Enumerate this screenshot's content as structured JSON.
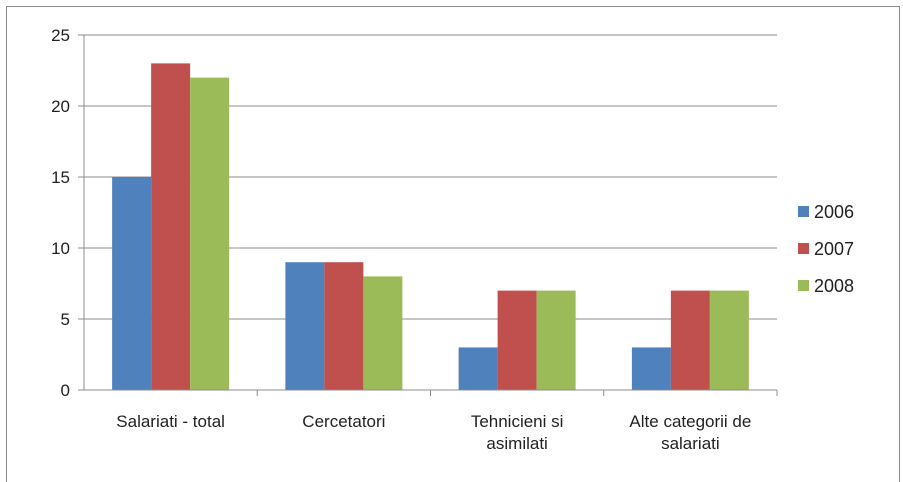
{
  "chart_data": {
    "type": "bar",
    "categories": [
      [
        "Salariati - total"
      ],
      [
        "Cercetatori"
      ],
      [
        "Tehnicieni si",
        "asimilati"
      ],
      [
        "Alte categorii de",
        "salariati"
      ]
    ],
    "series": [
      {
        "name": "2006",
        "color": "#4f81bd",
        "values": [
          15,
          9,
          3,
          3
        ]
      },
      {
        "name": "2007",
        "color": "#c0504d",
        "values": [
          23,
          9,
          7,
          7
        ]
      },
      {
        "name": "2008",
        "color": "#9bbb59",
        "values": [
          22,
          8,
          7,
          7
        ]
      }
    ],
    "ylim": [
      0,
      25
    ],
    "yticks": [
      0,
      5,
      10,
      15,
      20,
      25
    ],
    "grid": true,
    "legend_position": "right"
  }
}
